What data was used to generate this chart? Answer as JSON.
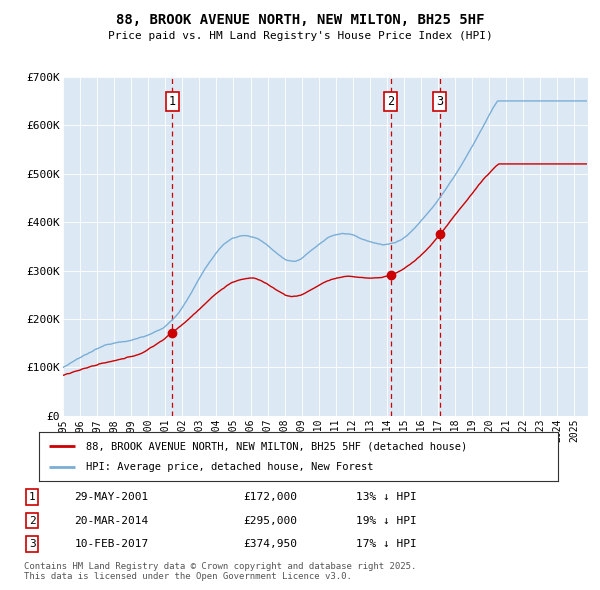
{
  "title": "88, BROOK AVENUE NORTH, NEW MILTON, BH25 5HF",
  "subtitle": "Price paid vs. HM Land Registry's House Price Index (HPI)",
  "bg_color": "#dce9f5",
  "hpi_color": "#7aaed6",
  "price_color": "#cc0000",
  "vline_color": "#cc0000",
  "transactions": [
    {
      "num": 1,
      "date_num": 2001.41,
      "price": 172000,
      "label": "29-MAY-2001",
      "pct": "13% ↓ HPI"
    },
    {
      "num": 2,
      "date_num": 2014.22,
      "price": 295000,
      "label": "20-MAR-2014",
      "pct": "19% ↓ HPI"
    },
    {
      "num": 3,
      "date_num": 2017.11,
      "price": 374950,
      "label": "10-FEB-2017",
      "pct": "17% ↓ HPI"
    }
  ],
  "legend_line1": "88, BROOK AVENUE NORTH, NEW MILTON, BH25 5HF (detached house)",
  "legend_line2": "HPI: Average price, detached house, New Forest",
  "footnote": "Contains HM Land Registry data © Crown copyright and database right 2025.\nThis data is licensed under the Open Government Licence v3.0.",
  "ylim": [
    0,
    700000
  ],
  "xlim_start": 1995.0,
  "xlim_end": 2025.8
}
